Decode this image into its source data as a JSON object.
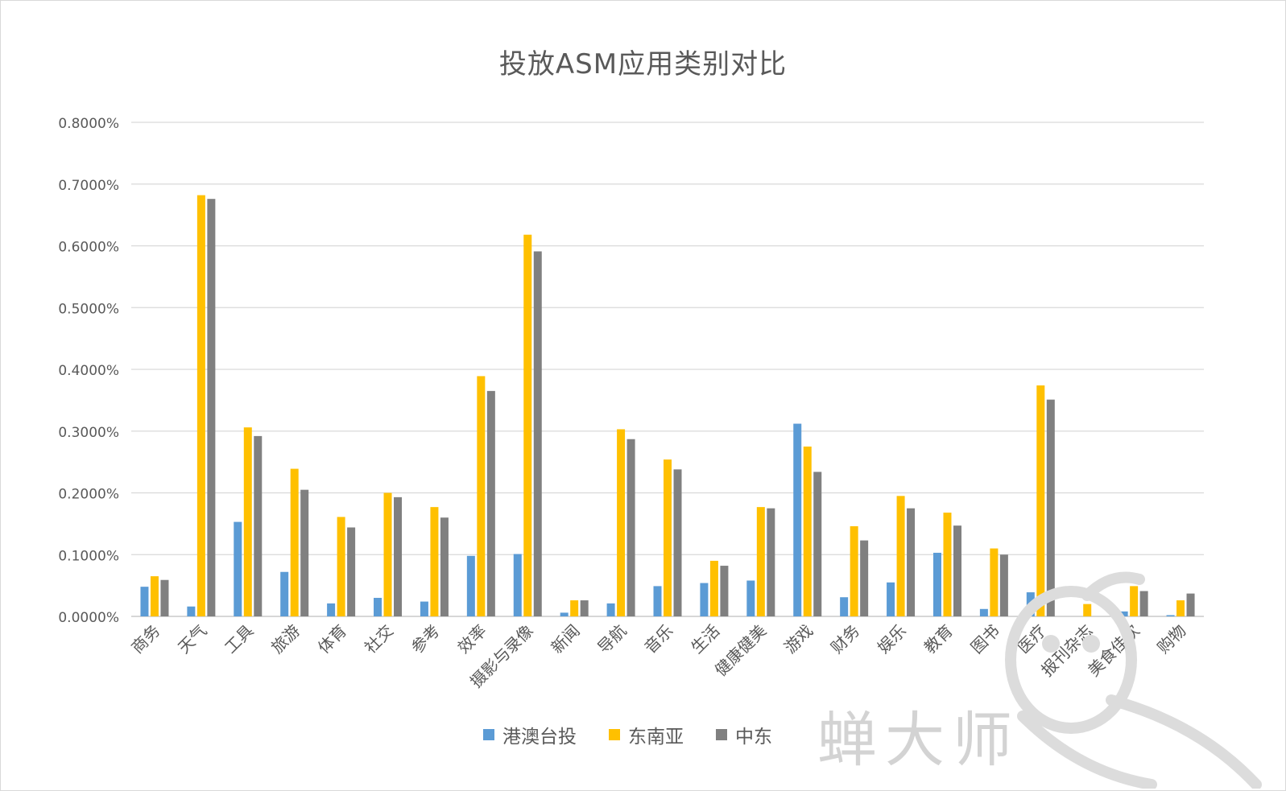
{
  "chart_data": {
    "type": "bar",
    "title": "投放ASM应用类别对比",
    "xlabel": "",
    "ylabel": "",
    "ylim": [
      0,
      0.008
    ],
    "y_ticks": [
      "0.0000%",
      "0.1000%",
      "0.2000%",
      "0.3000%",
      "0.4000%",
      "0.5000%",
      "0.6000%",
      "0.7000%",
      "0.8000%"
    ],
    "grid": true,
    "legend_position": "bottom",
    "categories": [
      "商务",
      "天气",
      "工具",
      "旅游",
      "体育",
      "社交",
      "参考",
      "效率",
      "摄影与录像",
      "新闻",
      "导航",
      "音乐",
      "生活",
      "健康健美",
      "游戏",
      "财务",
      "娱乐",
      "教育",
      "图书",
      "医疗",
      "报刊杂志",
      "美食佳饮",
      "购物"
    ],
    "series": [
      {
        "name": "港澳台投",
        "color": "#5b9bd5",
        "values": [
          0.00048,
          0.00016,
          0.00153,
          0.00072,
          0.00021,
          0.0003,
          0.00024,
          0.00098,
          0.00101,
          6e-05,
          0.00021,
          0.00049,
          0.00054,
          0.00058,
          0.00312,
          0.00031,
          0.00055,
          0.00103,
          0.00012,
          0.00039,
          0.0,
          8e-05,
          2e-05
        ]
      },
      {
        "name": "东南亚",
        "color": "#ffc000",
        "values": [
          0.00065,
          0.00682,
          0.00306,
          0.00239,
          0.00161,
          0.002,
          0.00177,
          0.00389,
          0.00618,
          0.00026,
          0.00303,
          0.00254,
          0.0009,
          0.00177,
          0.00275,
          0.00146,
          0.00195,
          0.00168,
          0.0011,
          0.00374,
          0.0002,
          0.00049,
          0.00026
        ]
      },
      {
        "name": "中东",
        "color": "#808080",
        "values": [
          0.00059,
          0.00676,
          0.00292,
          0.00205,
          0.00144,
          0.00193,
          0.0016,
          0.00365,
          0.00591,
          0.00026,
          0.00287,
          0.00238,
          0.00082,
          0.00175,
          0.00234,
          0.00123,
          0.00175,
          0.00147,
          0.001,
          0.00351,
          0.0,
          0.00041,
          0.00037
        ]
      }
    ]
  },
  "watermark": {
    "text": "蝉大师"
  }
}
